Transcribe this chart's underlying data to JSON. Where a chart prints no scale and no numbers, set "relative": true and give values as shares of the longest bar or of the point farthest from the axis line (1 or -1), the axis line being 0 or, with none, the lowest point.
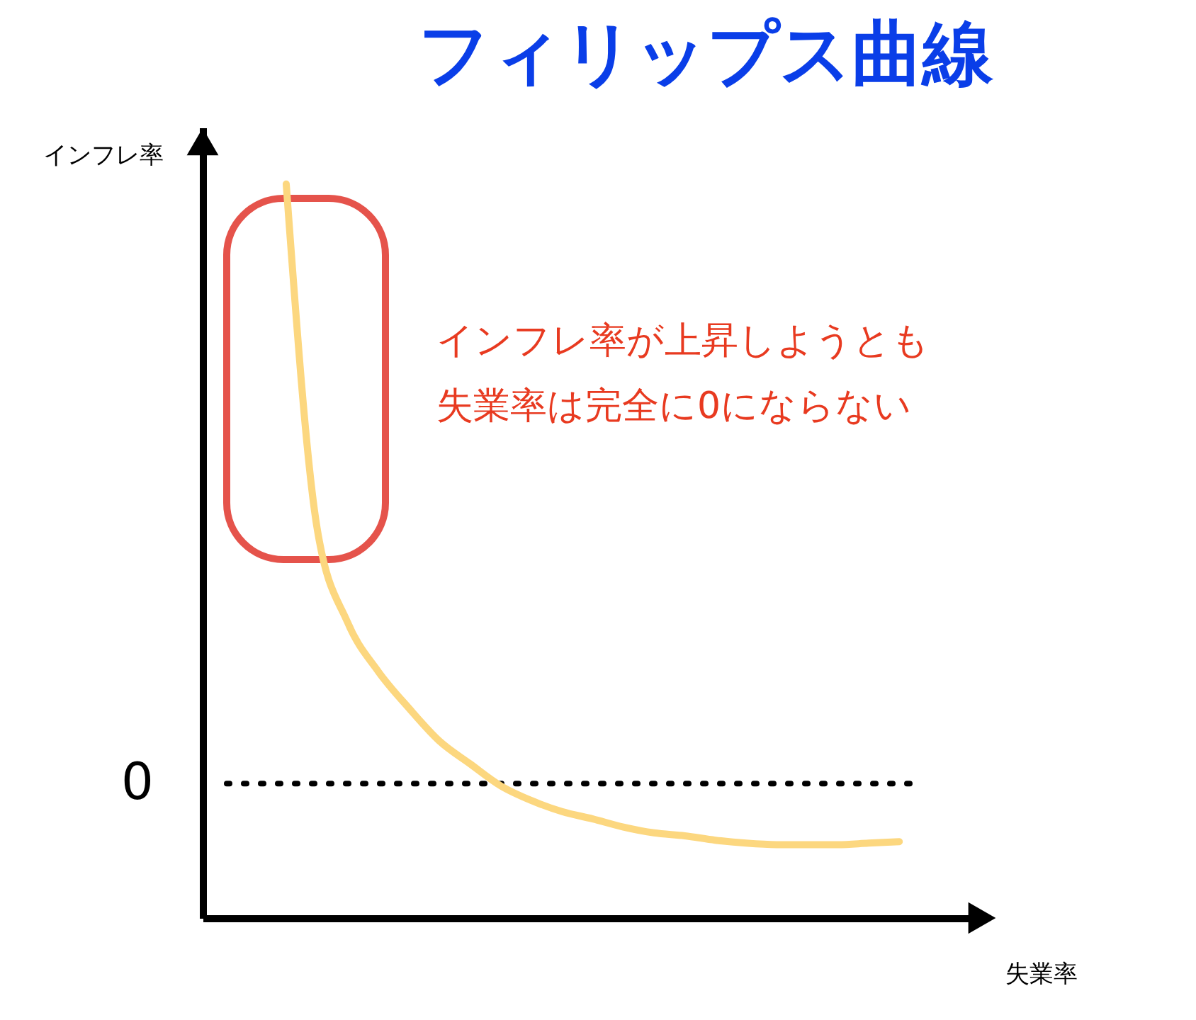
{
  "chart_data": {
    "type": "line",
    "title": "フィリップス曲線",
    "xlabel": "失業率",
    "ylabel": "インフレ率",
    "relative": true,
    "categories": [
      null,
      null,
      null,
      null,
      null,
      null,
      null,
      null,
      null,
      null,
      null,
      null,
      null,
      null,
      null,
      null,
      null,
      null,
      null,
      null,
      null
    ],
    "series": [
      {
        "color": "#fcd77f",
        "values": [
          1,
          0.533,
          0.403,
          0.336,
          0.286,
          0.241,
          0.21,
          0.18,
          0.16,
          0.145,
          0.135,
          0.124,
          0.116,
          0.112,
          0.106,
          0.102,
          0.1,
          0.1,
          0.1,
          0.102,
          0.104
        ]
      }
    ],
    "ref_lines": [
      {
        "axis": "y",
        "value": 0.183,
        "label": "0",
        "color": "#000000",
        "line_style": "dotted"
      }
    ],
    "annotations": [
      "インフレ率が上昇しようとも",
      "失業率は完全に0にならない"
    ],
    "grid": false,
    "line_style": "solid",
    "marker": "none"
  }
}
